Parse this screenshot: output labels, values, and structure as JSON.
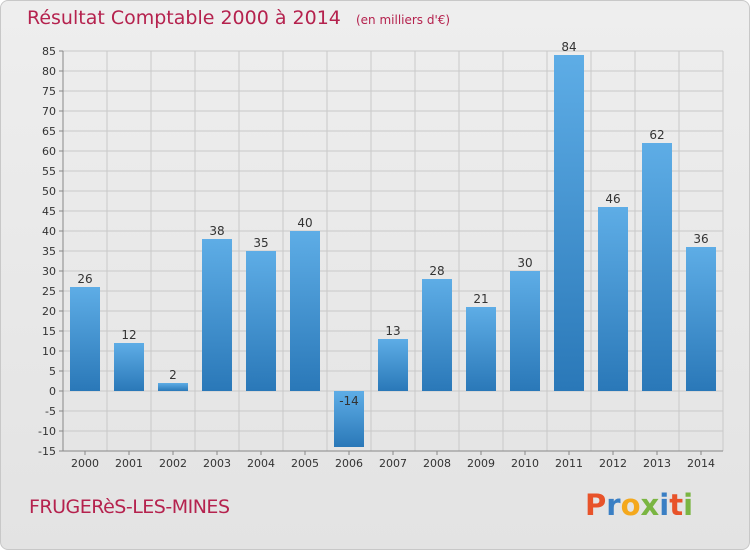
{
  "header": {
    "title": "Résultat Comptable 2000 à 2014",
    "subtitle": "(en milliers d'€)"
  },
  "footer": {
    "commune": "FRUGERèS-LES-MINES",
    "brand": "Proxiti",
    "brand_letter_colors": [
      "#e8532a",
      "#3a7fc4",
      "#f4a81d",
      "#7ab542",
      "#3a7fc4",
      "#e8532a",
      "#7ab542"
    ]
  },
  "chart_data": {
    "type": "bar",
    "categories": [
      "2000",
      "2001",
      "2002",
      "2003",
      "2004",
      "2005",
      "2006",
      "2007",
      "2008",
      "2009",
      "2010",
      "2011",
      "2012",
      "2013",
      "2014"
    ],
    "values": [
      26,
      12,
      2,
      38,
      35,
      40,
      -14,
      13,
      28,
      21,
      30,
      84,
      46,
      62,
      36
    ],
    "title": "Résultat Comptable 2000 à 2014",
    "xlabel": "",
    "ylabel": "",
    "ylim": [
      -15,
      85
    ],
    "yticks": [
      -15,
      -10,
      -5,
      0,
      5,
      10,
      15,
      20,
      25,
      30,
      35,
      40,
      45,
      50,
      55,
      60,
      65,
      70,
      75,
      80,
      85
    ],
    "grid": true,
    "colors": {
      "bar_light": "#5eade6",
      "bar_dark": "#2a78b8",
      "grid": "#c9c9c9",
      "axis": "#888888"
    }
  }
}
